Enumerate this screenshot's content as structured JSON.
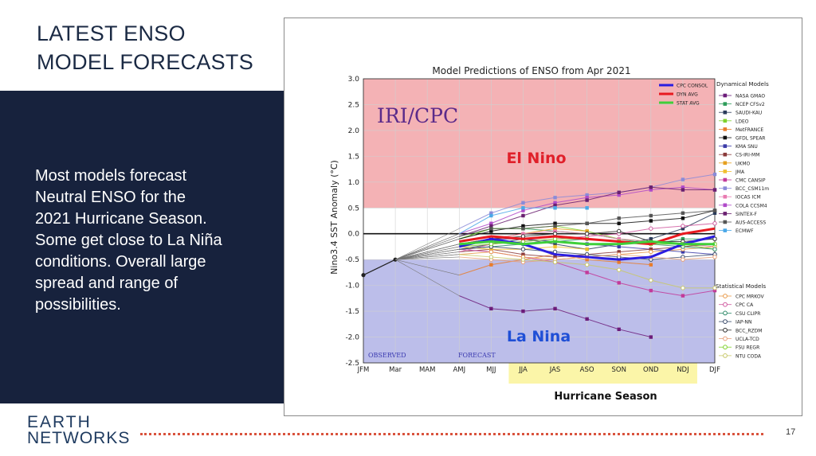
{
  "slide": {
    "title_line1": "LATEST ENSO",
    "title_line2": "MODEL FORECASTS",
    "body_line1": "Most models forecast",
    "body_line2": "Neutral ENSO for the",
    "body_line3": "2021 Hurricane Season.",
    "body_line4": "Some get close to La Niña",
    "body_line5": "conditions. Overall large",
    "body_line6": "spread and range of",
    "body_line7": "possibilities.",
    "logo_line1": "EARTH",
    "logo_line2": "NETWORKS",
    "page_number": "17",
    "colors": {
      "navy": "#17223d",
      "accent_dots": "#d9533d"
    }
  },
  "chart_data": {
    "type": "line",
    "title": "Model Predictions of ENSO from Apr 2021",
    "xlabel": "",
    "ylabel": "Nino3.4 SST Anomaly (°C)",
    "ylim": [
      -2.5,
      3.0
    ],
    "yticks": [
      "3.0",
      "2.5",
      "2.0",
      "1.5",
      "1.0",
      "0.5",
      "0.0",
      "-0.5",
      "-1.0",
      "-1.5",
      "-2.0",
      "-2.5"
    ],
    "categories": [
      "JFM",
      "Mar",
      "MAM",
      "AMJ",
      "MJJ",
      "JJA",
      "JAS",
      "ASO",
      "SON",
      "OND",
      "NDJ",
      "DJF"
    ],
    "grid": true,
    "legend_position": "top-right",
    "annotations": {
      "watermark": "IRI/CPC",
      "el_nino": "El Nino",
      "la_nina": "La Nina",
      "observed": "OBSERVED",
      "forecast": "FORECAST",
      "hurricane_season": "Hurricane Season"
    },
    "regions": [
      {
        "name": "el-nino-band",
        "from": 0.5,
        "to": 3.0,
        "color": "#f2a5a8"
      },
      {
        "name": "la-nina-band",
        "from": -2.5,
        "to": -0.5,
        "color": "#b0b3e6"
      }
    ],
    "highlight_categories": [
      "JJA",
      "JAS",
      "ASO",
      "SON",
      "OND",
      "NDJ"
    ],
    "observed": {
      "x": [
        "JFM",
        "Mar"
      ],
      "values": [
        -0.8,
        -0.5
      ]
    },
    "legend_groups": {
      "dynamical": "Dynamical Models",
      "statistical": "Statistical Models"
    },
    "series": [
      {
        "name": "CPC CONSOL",
        "color": "#2b1de0",
        "width": 3,
        "legend": "summary",
        "values": [
          null,
          -0.5,
          null,
          -0.25,
          -0.1,
          -0.2,
          -0.4,
          -0.45,
          -0.5,
          -0.45,
          -0.2,
          -0.05
        ]
      },
      {
        "name": "DYN AVG",
        "color": "#e8191f",
        "width": 3,
        "legend": "summary",
        "values": [
          null,
          -0.5,
          null,
          -0.15,
          -0.05,
          -0.1,
          -0.05,
          -0.1,
          -0.15,
          -0.2,
          0.0,
          0.1
        ]
      },
      {
        "name": "STAT AVG",
        "color": "#3fcf3a",
        "width": 3,
        "legend": "summary",
        "values": [
          null,
          -0.5,
          null,
          -0.2,
          -0.15,
          -0.2,
          -0.15,
          -0.2,
          -0.2,
          -0.15,
          -0.2,
          -0.2
        ]
      },
      {
        "name": "NASA GMAO",
        "color": "#6c1c7a",
        "legend": "dynamical",
        "values": [
          null,
          -0.5,
          null,
          -1.2,
          -1.45,
          -1.5,
          -1.45,
          -1.65,
          -1.85,
          -2.0,
          null,
          null
        ]
      },
      {
        "name": "NCEP CFSv2",
        "color": "#2e9c5a",
        "legend": "dynamical",
        "values": [
          null,
          -0.5,
          null,
          -0.1,
          0.1,
          0.1,
          0.05,
          0.0,
          -0.1,
          -0.2,
          -0.1,
          -0.1
        ]
      },
      {
        "name": "SAUDI-KAU",
        "color": "#2a3b5a",
        "legend": "dynamical",
        "values": [
          null,
          -0.5,
          null,
          -0.3,
          -0.2,
          -0.1,
          -0.2,
          -0.3,
          -0.2,
          -0.1,
          0.1,
          0.4
        ]
      },
      {
        "name": "LDEO",
        "color": "#7ed12c",
        "legend": "dynamical",
        "values": [
          null,
          -0.5,
          null,
          -0.1,
          0.1,
          0.1,
          0.15,
          0.05,
          -0.1,
          -0.15,
          -0.2,
          -0.3
        ]
      },
      {
        "name": "MetFRANCE",
        "color": "#e87c2c",
        "legend": "dynamical",
        "values": [
          null,
          -0.5,
          null,
          -0.8,
          -0.6,
          -0.5,
          -0.4,
          -0.5,
          -0.55,
          -0.6,
          null,
          null
        ]
      },
      {
        "name": "GFDL SPEAR",
        "color": "#111111",
        "legend": "dynamical",
        "values": [
          null,
          -0.5,
          null,
          -0.1,
          0.05,
          0.15,
          0.2,
          0.2,
          0.2,
          0.25,
          0.3,
          0.45
        ]
      },
      {
        "name": "KMA SNU",
        "color": "#3b3ba8",
        "legend": "dynamical",
        "values": [
          null,
          -0.5,
          null,
          -0.2,
          -0.1,
          -0.1,
          -0.15,
          -0.2,
          -0.25,
          -0.3,
          -0.35,
          -0.4
        ]
      },
      {
        "name": "CS-IRI-MM",
        "color": "#8a3a3a",
        "legend": "dynamical",
        "values": [
          null,
          -0.5,
          null,
          -0.35,
          -0.3,
          -0.4,
          -0.45,
          -0.4,
          -0.35,
          -0.3,
          -0.25,
          -0.2
        ]
      },
      {
        "name": "UKMO",
        "color": "#e6a020",
        "legend": "dynamical",
        "values": [
          null,
          -0.5,
          null,
          -0.2,
          -0.1,
          0.0,
          0.1,
          0.05,
          null,
          null,
          null,
          null
        ]
      },
      {
        "name": "JMA",
        "color": "#f0c030",
        "legend": "dynamical",
        "values": [
          null,
          -0.5,
          null,
          -0.25,
          -0.3,
          -0.3,
          -0.25,
          -0.3,
          null,
          null,
          null,
          null
        ]
      },
      {
        "name": "CMC CANSIP",
        "color": "#c23a9a",
        "legend": "dynamical",
        "values": [
          null,
          -0.5,
          null,
          -0.3,
          -0.35,
          -0.45,
          -0.55,
          -0.75,
          -0.95,
          -1.1,
          -1.2,
          -1.1
        ]
      },
      {
        "name": "BCC_CSM11m",
        "color": "#8a8ad8",
        "legend": "dynamical",
        "values": [
          null,
          -0.5,
          null,
          0.1,
          0.4,
          0.6,
          0.7,
          0.75,
          0.8,
          0.9,
          1.05,
          1.15
        ]
      },
      {
        "name": "IOCAS ICM",
        "color": "#e87ab0",
        "legend": "dynamical",
        "values": [
          null,
          -0.5,
          null,
          -0.2,
          -0.1,
          0.0,
          0.05,
          0.0,
          -0.1,
          -0.15,
          -0.2,
          -0.25
        ]
      },
      {
        "name": "COLA CCSM4",
        "color": "#b04ac9",
        "legend": "dynamical",
        "values": [
          null,
          -0.5,
          null,
          0.0,
          0.2,
          0.45,
          0.6,
          0.7,
          0.75,
          0.85,
          0.9,
          0.85
        ]
      },
      {
        "name": "SINTEX-F",
        "color": "#6a2070",
        "legend": "dynamical",
        "values": [
          null,
          -0.5,
          null,
          -0.05,
          0.15,
          0.35,
          0.55,
          0.65,
          0.8,
          0.9,
          0.85,
          0.85
        ]
      },
      {
        "name": "AUS-ACCESS",
        "color": "#555555",
        "legend": "dynamical",
        "values": [
          null,
          -0.5,
          null,
          -0.05,
          0.1,
          0.1,
          0.15,
          0.2,
          0.3,
          0.35,
          0.4,
          0.45
        ]
      },
      {
        "name": "ECMWF",
        "color": "#4aa8e8",
        "legend": "dynamical",
        "values": [
          null,
          -0.5,
          null,
          0.0,
          0.35,
          0.5,
          0.5,
          0.5,
          null,
          null,
          null,
          null
        ]
      },
      {
        "name": "CPC MRKOV",
        "color": "#e89a4a",
        "legend": "statistical",
        "open": true,
        "values": [
          null,
          -0.5,
          null,
          -0.4,
          -0.35,
          -0.45,
          -0.5,
          -0.45,
          -0.4,
          -0.35,
          -0.3,
          -0.25
        ]
      },
      {
        "name": "CPC CA",
        "color": "#d05aa0",
        "legend": "statistical",
        "open": true,
        "values": [
          null,
          -0.5,
          null,
          -0.35,
          -0.2,
          -0.15,
          -0.1,
          -0.05,
          0.0,
          0.1,
          0.15,
          0.2
        ]
      },
      {
        "name": "CSU CLIPR",
        "color": "#2e8a6a",
        "legend": "statistical",
        "open": true,
        "values": [
          null,
          -0.5,
          null,
          -0.3,
          -0.25,
          -0.2,
          -0.15,
          -0.1,
          -0.15,
          -0.2,
          -0.25,
          -0.3
        ]
      },
      {
        "name": "IAP-NN",
        "color": "#3a4a6a",
        "legend": "statistical",
        "open": true,
        "values": [
          null,
          -0.5,
          null,
          -0.3,
          -0.25,
          -0.3,
          -0.35,
          -0.4,
          -0.45,
          -0.5,
          -0.45,
          -0.4
        ]
      },
      {
        "name": "BCC_RZDM",
        "color": "#333333",
        "legend": "statistical",
        "open": true,
        "values": [
          null,
          -0.5,
          null,
          -0.2,
          -0.1,
          -0.05,
          0.0,
          0.0,
          0.05,
          -0.15,
          -0.15,
          -0.1
        ]
      },
      {
        "name": "UCLA-TCD",
        "color": "#e8a07a",
        "legend": "statistical",
        "open": true,
        "values": [
          null,
          -0.5,
          null,
          -0.45,
          -0.5,
          -0.55,
          -0.5,
          -0.45,
          -0.4,
          -0.45,
          -0.5,
          -0.45
        ]
      },
      {
        "name": "FSU REGR",
        "color": "#7ed12c",
        "legend": "statistical",
        "open": true,
        "values": [
          null,
          -0.5,
          null,
          -0.25,
          -0.2,
          -0.15,
          -0.1,
          -0.1,
          -0.15,
          -0.2,
          -0.2,
          -0.2
        ]
      },
      {
        "name": "NTU CODA",
        "color": "#c8c86a",
        "legend": "statistical",
        "open": true,
        "values": [
          null,
          -0.5,
          null,
          -0.4,
          -0.45,
          -0.5,
          -0.55,
          -0.6,
          -0.7,
          -0.9,
          -1.05,
          -1.05
        ]
      }
    ]
  }
}
